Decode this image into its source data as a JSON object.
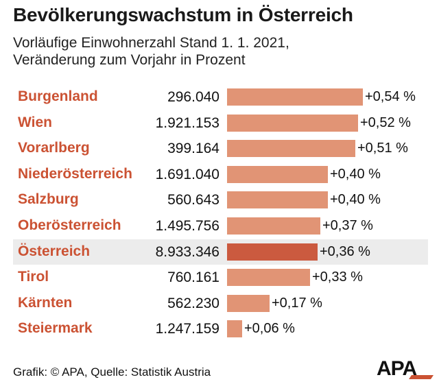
{
  "title": "Bevölkerungswachstum in Österreich",
  "subtitle_line1": "Vorläufige Einwohnerzahl Stand 1. 1. 2021,",
  "subtitle_line2": "Veränderung zum Vorjahr in Prozent",
  "footer": "Grafik: © APA, Quelle: Statistik Austria",
  "logo_text": "APA",
  "colors": {
    "accent": "#cb5233",
    "bar": "#e19475",
    "bar_total": "#cb5a3f",
    "total_row_bg": "#ececec"
  },
  "chart_data": {
    "type": "bar",
    "orientation": "horizontal",
    "categories": [
      "Burgenland",
      "Wien",
      "Vorarlberg",
      "Niederösterreich",
      "Salzburg",
      "Oberösterreich",
      "Österreich",
      "Tirol",
      "Kärnten",
      "Steiermark"
    ],
    "population_labels": [
      "296.040",
      "1.921.153",
      "399.164",
      "1.691.040",
      "560.643",
      "1.495.756",
      "8.933.346",
      "760.161",
      "562.230",
      "1.247.159"
    ],
    "values": [
      0.54,
      0.52,
      0.51,
      0.4,
      0.4,
      0.37,
      0.36,
      0.33,
      0.17,
      0.06
    ],
    "value_labels": [
      "+0,54 %",
      "+0,52 %",
      "+0,51 %",
      "+0,40 %",
      "+0,40 %",
      "+0,37 %",
      "+0,36 %",
      "+0,33 %",
      "+0,17 %",
      "+0,06 %"
    ],
    "highlight": "Österreich",
    "title": "Bevölkerungswachstum in Österreich",
    "xlabel": "",
    "ylabel": "",
    "xlim": [
      0,
      0.54
    ]
  }
}
